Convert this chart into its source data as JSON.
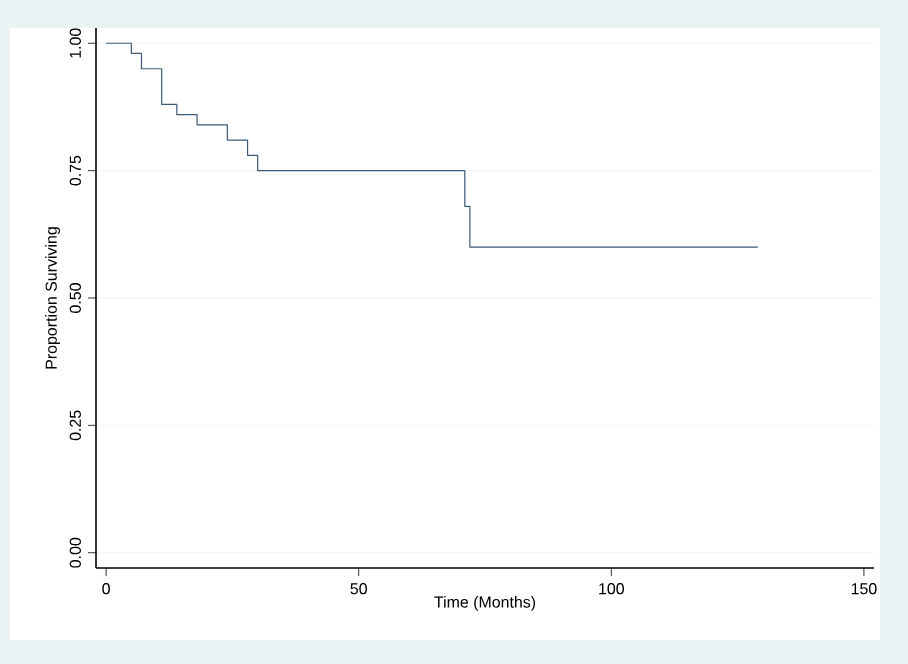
{
  "chart_data": {
    "type": "step",
    "xlabel": "Time (Months)",
    "ylabel": "Proportion Surviving",
    "x": [
      0,
      5,
      7,
      11,
      14,
      18,
      24,
      28,
      30,
      71,
      72,
      129
    ],
    "values": [
      1.0,
      0.98,
      0.95,
      0.88,
      0.86,
      0.84,
      0.81,
      0.78,
      0.75,
      0.68,
      0.6,
      0.6
    ],
    "color": "#3b5a78",
    "xlim": [
      -2,
      152
    ],
    "xticks": [
      0,
      50,
      100,
      150
    ],
    "ylim": [
      -0.03,
      1.03
    ],
    "yticks": [
      {
        "value": 0,
        "label": "0.00"
      },
      {
        "value": 0.25,
        "label": "0.25"
      },
      {
        "value": 0.5,
        "label": "0.50"
      },
      {
        "value": 0.75,
        "label": "0.75"
      },
      {
        "value": 1,
        "label": "1.00"
      }
    ],
    "grid": "y"
  }
}
